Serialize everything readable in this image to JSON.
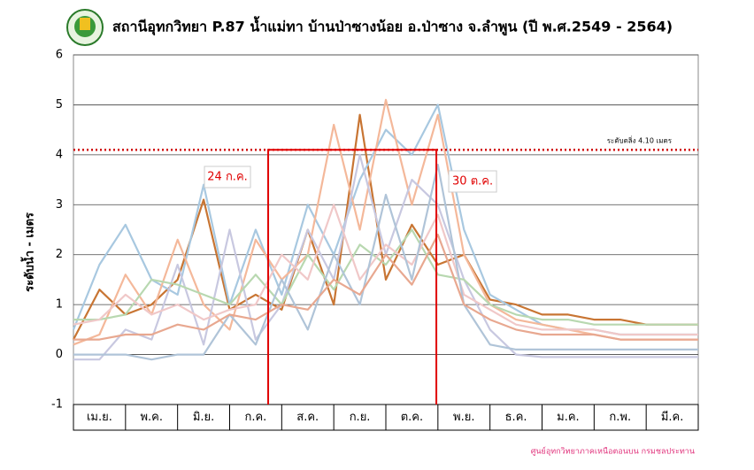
{
  "chart_data": {
    "type": "line",
    "title": "สถานีอุทกวิทยา P.87 น้ำแม่ทา บ้านป่าซางน้อย อ.ป่าซาง จ.ลำพูน (ปี พ.ศ.2549 - 2564)",
    "ylabel": "ระดับน้ำ - เมตร",
    "footer": "ศูนย์อุทกวิทยาภาคเหนือตอนบน กรมชลประทาน",
    "categories": [
      "เม.ย.",
      "พ.ค.",
      "มิ.ย.",
      "ก.ค.",
      "ส.ค.",
      "ก.ย.",
      "ต.ค.",
      "พ.ย.",
      "ธ.ค.",
      "ม.ค.",
      "ก.พ.",
      "มี.ค."
    ],
    "xlim": [
      0,
      12
    ],
    "x": [
      0,
      0.5,
      1,
      1.5,
      2,
      2.5,
      3,
      3.5,
      4,
      4.5,
      5,
      5.5,
      6,
      6.5,
      7,
      7.5,
      8,
      8.5,
      9,
      9.5,
      10,
      10.5,
      11,
      11.5,
      12
    ],
    "ylim": [
      -1,
      6
    ],
    "yticks": [
      -1,
      0,
      1,
      2,
      3,
      4,
      5,
      6
    ],
    "grid": true,
    "threshold": {
      "value": 4.1,
      "label": "ระดับตลิ่ง 4.10 เมตร",
      "color": "#d00000"
    },
    "flood_window": {
      "x": [
        3.74,
        6.97
      ],
      "labels": [
        "24 ก.ค.",
        "30 ต.ค."
      ],
      "color": "#e00000"
    },
    "series": [
      {
        "color": "#c87533",
        "values": [
          0.3,
          1.3,
          0.8,
          1.0,
          1.5,
          3.1,
          0.9,
          1.2,
          0.9,
          2.5,
          1.0,
          4.8,
          1.5,
          2.6,
          1.8,
          2.0,
          1.1,
          1.0,
          0.8,
          0.8,
          0.7,
          0.7,
          0.6,
          0.6,
          0.6
        ]
      },
      {
        "color": "#a8c8e0",
        "values": [
          0.5,
          1.8,
          2.6,
          1.5,
          1.2,
          3.4,
          1.0,
          2.5,
          1.2,
          3.0,
          2.0,
          3.5,
          4.5,
          4.0,
          5.0,
          2.5,
          1.2,
          0.9,
          0.6,
          0.5,
          0.5,
          0.4,
          0.4,
          0.4,
          0.4
        ]
      },
      {
        "color": "#f4b89a",
        "values": [
          0.2,
          0.4,
          1.6,
          0.8,
          2.3,
          1.0,
          0.5,
          2.3,
          1.5,
          2.0,
          4.6,
          2.5,
          5.1,
          3.0,
          4.8,
          2.0,
          1.0,
          0.7,
          0.6,
          0.5,
          0.4,
          0.3,
          0.3,
          0.3,
          0.3
        ]
      },
      {
        "color": "#c8c8e0",
        "values": [
          -0.1,
          -0.1,
          0.5,
          0.3,
          1.8,
          0.2,
          2.5,
          0.3,
          1.0,
          2.5,
          1.5,
          4.0,
          2.0,
          3.5,
          3.0,
          1.5,
          0.5,
          0.0,
          -0.05,
          -0.05,
          -0.05,
          -0.05,
          -0.05,
          -0.05,
          -0.05
        ]
      },
      {
        "color": "#b8d8b0",
        "values": [
          0.7,
          0.7,
          0.8,
          1.5,
          1.4,
          1.2,
          1.0,
          1.6,
          1.0,
          2.0,
          1.3,
          2.2,
          1.8,
          2.5,
          1.6,
          1.5,
          1.0,
          0.8,
          0.7,
          0.7,
          0.6,
          0.6,
          0.6,
          0.6,
          0.6
        ]
      },
      {
        "color": "#f0c8c8",
        "values": [
          0.6,
          0.7,
          1.2,
          0.8,
          1.0,
          0.7,
          0.9,
          1.0,
          2.0,
          1.5,
          3.0,
          1.5,
          2.2,
          1.8,
          2.8,
          1.2,
          0.9,
          0.6,
          0.5,
          0.5,
          0.5,
          0.4,
          0.4,
          0.4,
          0.4
        ]
      },
      {
        "color": "#b0c4d8",
        "values": [
          0.0,
          0.0,
          0.0,
          -0.1,
          0.0,
          0.0,
          0.8,
          0.2,
          1.5,
          0.5,
          2.0,
          1.0,
          3.2,
          1.5,
          3.8,
          1.0,
          0.2,
          0.1,
          0.1,
          0.1,
          0.1,
          0.1,
          0.1,
          0.1,
          0.1
        ]
      },
      {
        "color": "#e8a890",
        "values": [
          0.3,
          0.3,
          0.4,
          0.4,
          0.6,
          0.5,
          0.8,
          0.7,
          1.0,
          0.9,
          1.5,
          1.2,
          2.0,
          1.4,
          2.4,
          1.0,
          0.7,
          0.5,
          0.4,
          0.4,
          0.4,
          0.3,
          0.3,
          0.3,
          0.3
        ]
      }
    ]
  }
}
